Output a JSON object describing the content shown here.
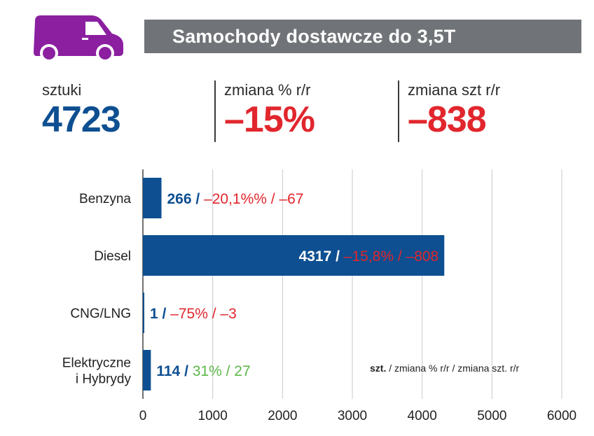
{
  "header": {
    "title": "Samochody dostawcze do 3,5T",
    "icon": "delivery-van-icon",
    "icon_color": "#8b1fa0",
    "bar_color": "#707478"
  },
  "stats": {
    "units_label": "sztuki",
    "units_value": "4723",
    "pct_label": "zmiana % r/r",
    "pct_value": "–15%",
    "abs_label": "zmiana szt r/r",
    "abs_value": "–838"
  },
  "legend_note": {
    "bold": "szt.",
    "rest": " / zmiana % r/r / zmiana szt. r/r"
  },
  "colors": {
    "bar": "#0d4f91",
    "value": "#0d4f91",
    "negative": "#e1262d",
    "positive": "#5cb848"
  },
  "chart_data": {
    "type": "bar",
    "orientation": "horizontal",
    "categories": [
      "Benzyna",
      "Diesel",
      "CNG/LNG",
      "Elektryczne\ni Hybrydy"
    ],
    "values": [
      266,
      4317,
      1,
      114
    ],
    "pct_change": [
      "–20,1%%",
      "–15,8%",
      "–75%",
      "31%"
    ],
    "abs_change": [
      "–67",
      "–808",
      "–3",
      "27"
    ],
    "change_sign": [
      "negative",
      "negative",
      "negative",
      "positive"
    ],
    "xlim": [
      0,
      6000
    ],
    "xticks": [
      0,
      1000,
      2000,
      3000,
      4000,
      5000,
      6000
    ],
    "grid": true
  }
}
